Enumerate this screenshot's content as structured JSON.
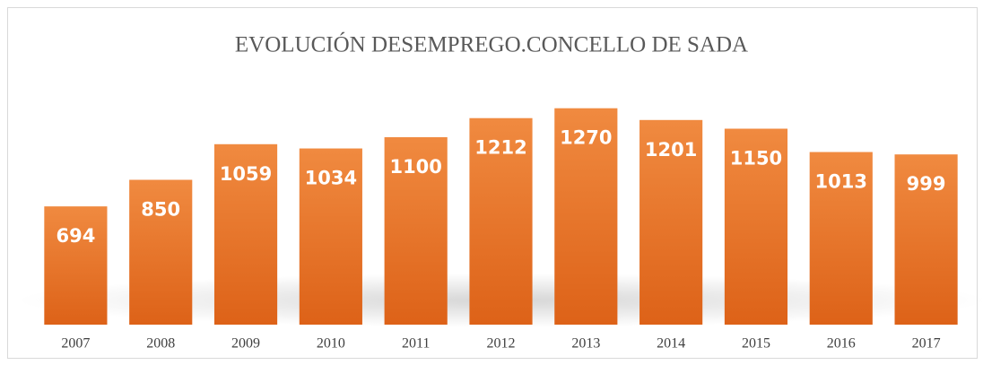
{
  "chart_data": {
    "type": "bar",
    "title": "EVOLUCIÓN DESEMPREGO.CONCELLO DE SADA",
    "categories": [
      "2007",
      "2008",
      "2009",
      "2010",
      "2011",
      "2012",
      "2013",
      "2014",
      "2015",
      "2016",
      "2017"
    ],
    "values": [
      694,
      850,
      1059,
      1034,
      1100,
      1212,
      1270,
      1201,
      1150,
      1013,
      999
    ],
    "color": "#e97427",
    "ylim": [
      0,
      1400
    ]
  }
}
